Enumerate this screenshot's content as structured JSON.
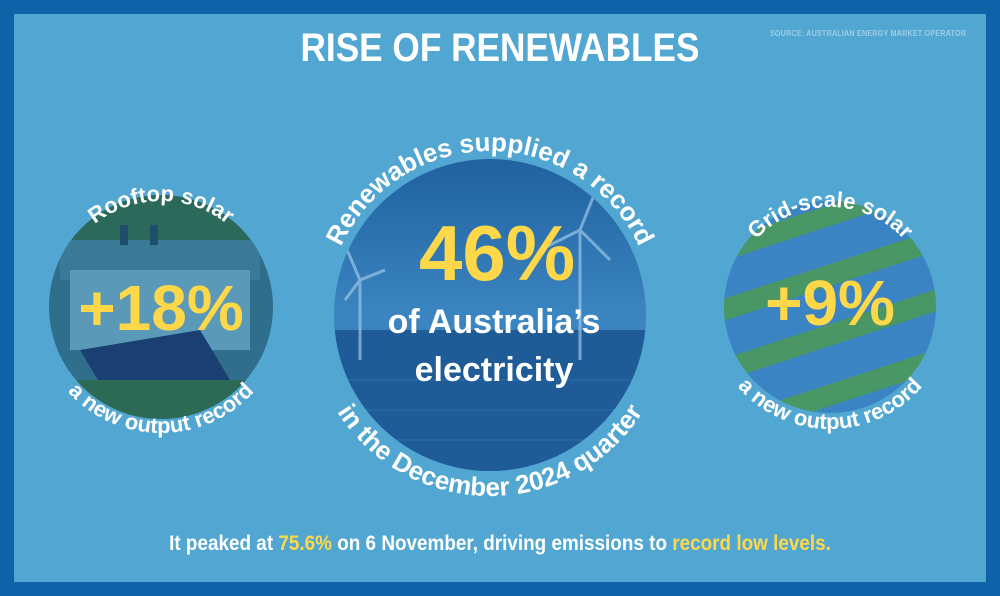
{
  "title": "RISE OF RENEWABLES",
  "source": "SOURCE: AUSTRALIAN ENERGY MARKET OPERATOR",
  "left": {
    "top_arc": "Rooftop solar",
    "value": "+18%",
    "bottom_arc": "a new output record"
  },
  "center": {
    "top_arc": "Renewables supplied a record",
    "value": "46%",
    "line1": "of Australia’s",
    "line2": "electricity",
    "bottom_arc": "in the December 2024 quarter"
  },
  "right": {
    "top_arc": "Grid-scale solar",
    "value": "+9%",
    "bottom_arc": "a new output record"
  },
  "footer": {
    "part1": "It peaked at ",
    "highlight1": "75.6%",
    "part2": " on 6 November, driving emissions to ",
    "highlight2": "record low levels."
  },
  "colors": {
    "frame": "#0d62a8",
    "background": "#51a7d1",
    "accent": "#ffd84a",
    "text": "#ffffff"
  }
}
